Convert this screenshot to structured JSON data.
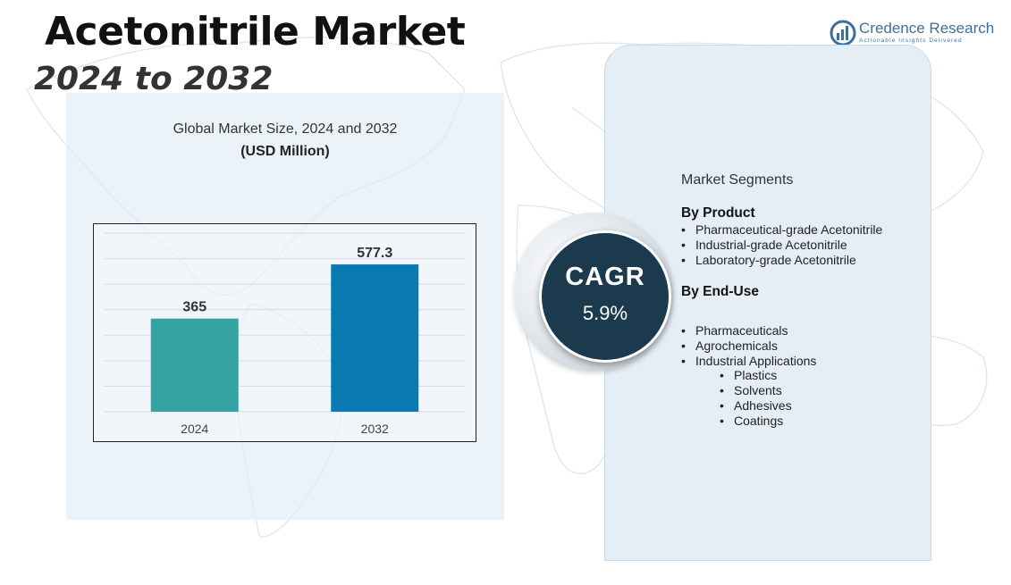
{
  "header": {
    "title": "Acetonitrile Market",
    "subtitle": "2024 to 2032"
  },
  "logo": {
    "name": "Credence Research",
    "tagline": "Actionable Insights Delivered"
  },
  "chart": {
    "heading": "Global Market Size, 2024 and 2032",
    "unit": "(USD Million)"
  },
  "chart_data": {
    "type": "bar",
    "title": "Global Market Size, 2024 and 2032",
    "subtitle": "(USD Million)",
    "categories": [
      "2024",
      "2032"
    ],
    "values": [
      365,
      577.3
    ],
    "data_labels": [
      "365",
      "577.3"
    ],
    "ylim": [
      0,
      700
    ],
    "grid": true,
    "bar_colors": [
      "#36a3a3",
      "#0a7ab2"
    ]
  },
  "cagr": {
    "label": "CAGR",
    "value": "5.9%"
  },
  "segments": {
    "title": "Market Segments",
    "by_product": {
      "heading": "By Product",
      "items": [
        "Pharmaceutical-grade Acetonitrile",
        "Industrial-grade Acetonitrile",
        "Laboratory-grade Acetonitrile"
      ]
    },
    "by_end_use": {
      "heading": "By End-Use",
      "items": [
        "Pharmaceuticals",
        "Agrochemicals",
        "Industrial Applications"
      ],
      "sub_items": [
        "Plastics",
        "Solvents",
        "Adhesives",
        "Coatings"
      ]
    }
  },
  "colors": {
    "cagr_circle": "#1c3a4d",
    "bar_2024": "#36a3a3",
    "bar_2032": "#0a7ab2",
    "panel": "#e2ecf4"
  }
}
